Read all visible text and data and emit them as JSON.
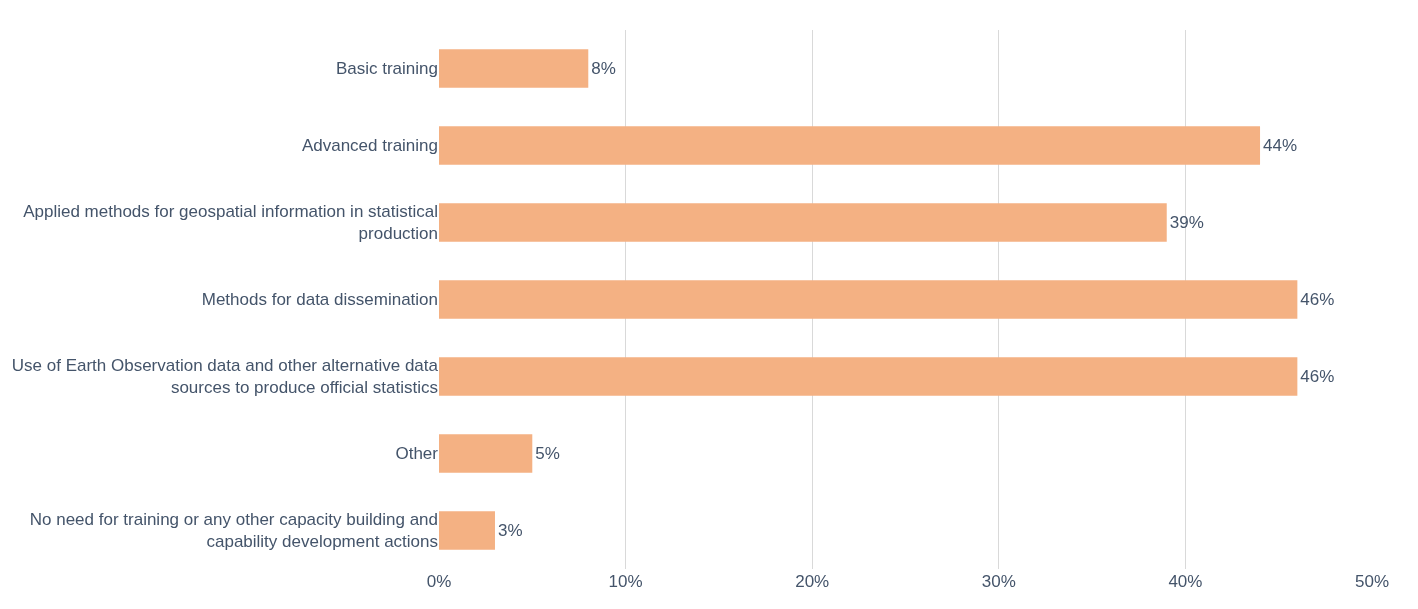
{
  "chart_data": {
    "type": "bar",
    "orientation": "horizontal",
    "categories": [
      "Basic training",
      "Advanced training",
      "Applied methods for geospatial information in statistical production",
      "Methods for data dissemination",
      "Use of Earth Observation data and other alternative data sources to produce official statistics",
      "Other",
      "No need for training or any other capacity building and capability development actions"
    ],
    "values": [
      8,
      44,
      39,
      46,
      46,
      5,
      3
    ],
    "color": "#f4b183",
    "value_labels": [
      "8%",
      "44%",
      "39%",
      "46%",
      "46%",
      "5%",
      "3%"
    ],
    "xlim": [
      0,
      50
    ],
    "xticks": [
      {
        "value": 0,
        "label": "0%"
      },
      {
        "value": 10,
        "label": "10%"
      },
      {
        "value": 20,
        "label": "20%"
      },
      {
        "value": 30,
        "label": "30%"
      },
      {
        "value": 40,
        "label": "40%"
      },
      {
        "value": 50,
        "label": "50%"
      }
    ],
    "grid": "x"
  }
}
